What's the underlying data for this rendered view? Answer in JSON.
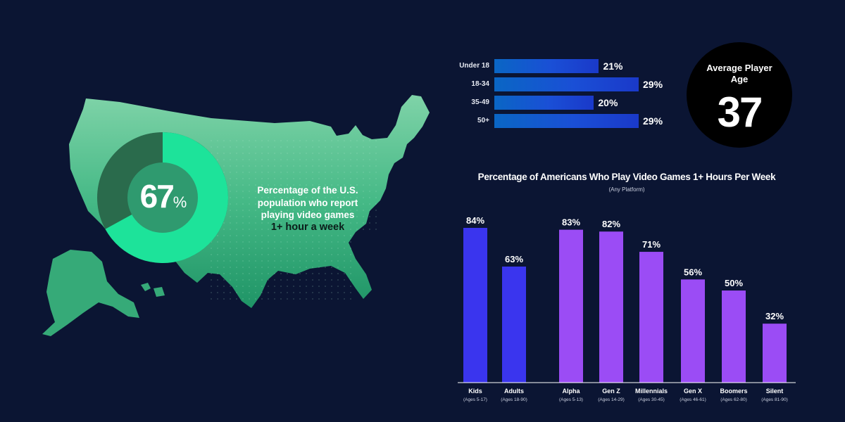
{
  "map_stat": {
    "percent_number": "67",
    "percent_sign": "%",
    "caption_lines": [
      "Percentage of the U.S.",
      "population who report",
      "playing video games"
    ],
    "caption_highlight": "1+ hour a week",
    "donut_fraction": 0.67,
    "colors": {
      "filled": "#1de39a",
      "unfilled": "#2a6b4c",
      "center": "#2f9a6f"
    }
  },
  "average_age": {
    "label_line1": "Average Player",
    "label_line2": "Age",
    "value": "37"
  },
  "chart_data": [
    {
      "type": "bar",
      "orientation": "horizontal",
      "categories": [
        "Under 18",
        "18-34",
        "35-49",
        "50+"
      ],
      "values": [
        21,
        29,
        20,
        29
      ],
      "value_labels": [
        "21%",
        "29%",
        "20%",
        "29%"
      ],
      "xlim": [
        0,
        29
      ],
      "colors": [
        "#0a66c4",
        "#1a39c9"
      ]
    },
    {
      "type": "bar",
      "title": "Percentage of Americans Who Play Video Games 1+ Hours Per Week",
      "subtitle": "(Any Platform)",
      "categories": [
        "Kids",
        "Adults",
        "Alpha",
        "Gen Z",
        "Millennials",
        "Gen X",
        "Boomers",
        "Silent"
      ],
      "category_sublabels": [
        "(Ages 5-17)",
        "(Ages 18-90)",
        "(Ages 5-13)",
        "(Ages 14-29)",
        "(Ages 30-45)",
        "(Ages 46-61)",
        "(Ages 62-80)",
        "(Ages 81-90)"
      ],
      "values": [
        84,
        63,
        83,
        82,
        71,
        56,
        50,
        32
      ],
      "value_labels": [
        "84%",
        "63%",
        "83%",
        "82%",
        "71%",
        "56%",
        "50%",
        "32%"
      ],
      "bar_colors": [
        "#3a35ee",
        "#3a35ee",
        "#9b4cf5",
        "#9b4cf5",
        "#9b4cf5",
        "#9b4cf5",
        "#9b4cf5",
        "#9b4cf5"
      ],
      "ylim": [
        0,
        84
      ]
    }
  ]
}
